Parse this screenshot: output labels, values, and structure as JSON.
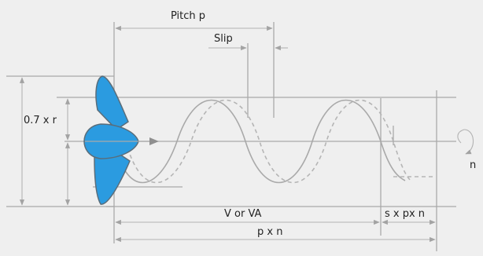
{
  "labels": {
    "pitch": "Pitch p",
    "slip": "Slip",
    "radius_fraction": "0.7 x r",
    "advance_speed": "V or VA",
    "slip_distance": "s x px n",
    "pitch_times_revs": "p x n",
    "revolutions": "n"
  },
  "colors": {
    "propeller_fill": "#2b9be0",
    "propeller_stroke": "#5a6d7a",
    "lines": "#a9a9a9",
    "background": "#efefef"
  }
}
